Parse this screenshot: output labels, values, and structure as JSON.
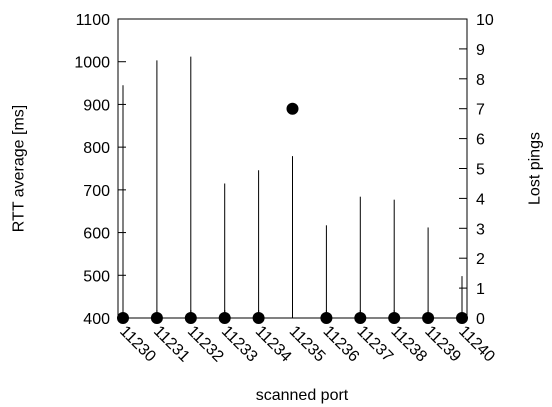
{
  "chart_data": {
    "type": "scatter",
    "xlabel": "scanned port",
    "ylabel": "RTT average [ms]",
    "y2label": "Lost pings",
    "x": [
      11230,
      11231,
      11232,
      11233,
      11234,
      11235,
      11236,
      11237,
      11238,
      11239,
      11240
    ],
    "x_tick_labels": [
      "11230",
      "11231",
      "11232",
      "11233",
      "11234",
      "11235",
      "11236",
      "11237",
      "11238",
      "11239",
      "11240"
    ],
    "ylim": [
      400,
      1100
    ],
    "y_ticks": [
      400,
      500,
      600,
      700,
      800,
      900,
      1000,
      1100
    ],
    "y2lim": [
      0,
      10
    ],
    "y2_ticks": [
      0,
      1,
      2,
      3,
      4,
      5,
      6,
      7,
      8,
      9,
      10
    ],
    "series": [
      {
        "style": "impulses",
        "axis": "left",
        "color": "#000000",
        "values": [
          945,
          1003,
          1012,
          715,
          746,
          779,
          617,
          684,
          677,
          612,
          498
        ]
      },
      {
        "style": "points",
        "axis": "right",
        "color": "#000000",
        "values": [
          0,
          0,
          0,
          0,
          0,
          7,
          0,
          0,
          0,
          0,
          0
        ]
      }
    ],
    "grid": false,
    "legend": "none"
  }
}
